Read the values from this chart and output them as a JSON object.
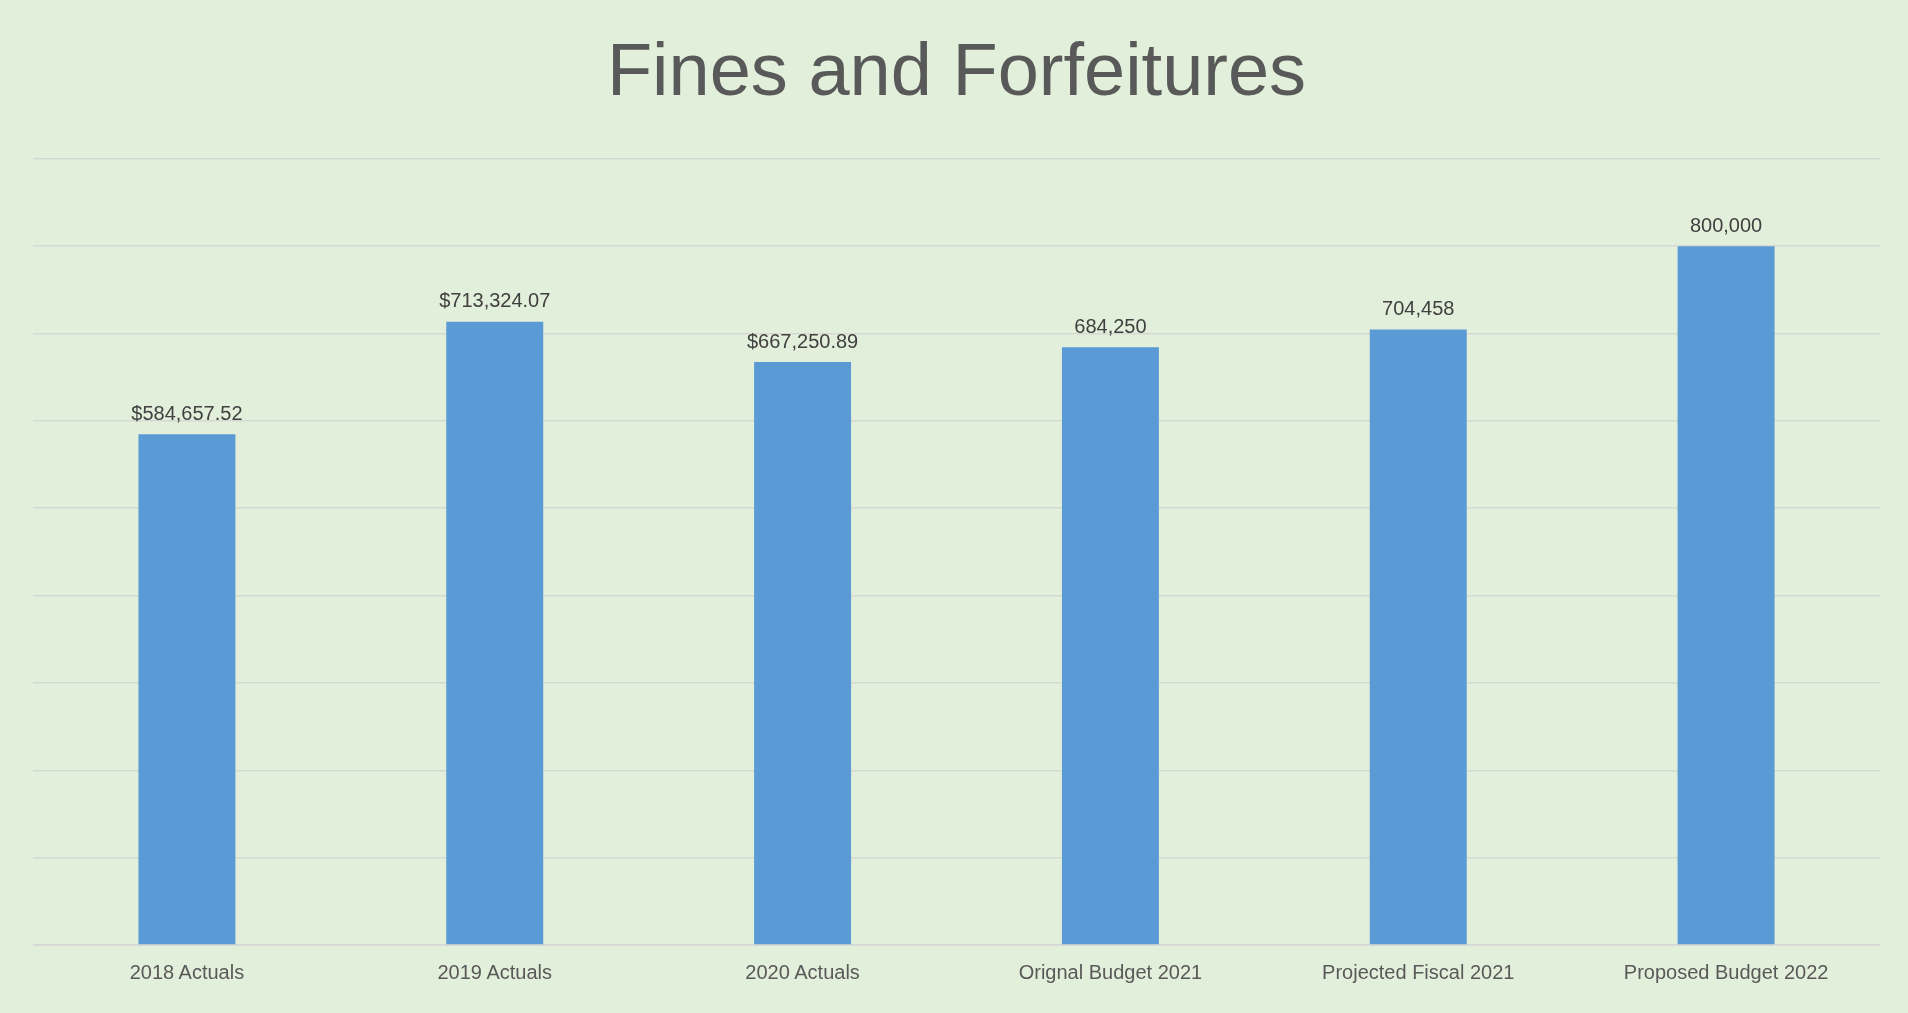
{
  "chart_data": {
    "type": "bar",
    "title": "Fines and Forfeitures",
    "categories": [
      "2018 Actuals",
      "2019 Actuals",
      "2020 Actuals",
      "Orignal Budget 2021",
      "Projected Fiscal 2021",
      "Proposed Budget 2022"
    ],
    "values": [
      584657.52,
      713324.07,
      667250.89,
      684250,
      704458,
      800000
    ],
    "value_labels": [
      "$584,657.52",
      "$713,324.07",
      "$667,250.89",
      "684,250",
      "704,458",
      "800,000"
    ],
    "color": "#5b9bd5",
    "ylim": [
      0,
      900000
    ],
    "yticks": [
      {
        "value": 0,
        "label": null
      },
      {
        "value": 100000,
        "label": null
      },
      {
        "value": 200000,
        "label": null
      },
      {
        "value": 300000,
        "label": null
      },
      {
        "value": 400000,
        "label": null
      },
      {
        "value": 500000,
        "label": null
      },
      {
        "value": 600000,
        "label": null
      },
      {
        "value": 700000,
        "label": null
      },
      {
        "value": 800000,
        "label": null
      },
      {
        "value": 900000,
        "label": null
      }
    ],
    "grid": "y",
    "tick_labels": "x"
  }
}
